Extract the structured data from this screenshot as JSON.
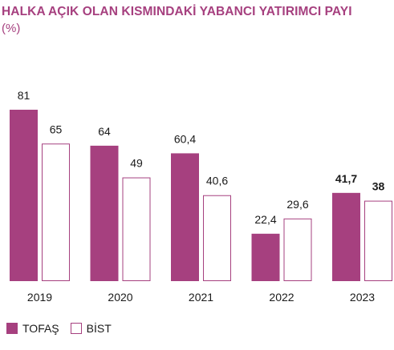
{
  "colors": {
    "tofas": "#a6407f",
    "bist_fill": "#ffffff",
    "bist_stroke": "#a6407f",
    "title": "#a6407f",
    "text": "#1a1a1a"
  },
  "chart_data": {
    "type": "bar",
    "title": "HALKA AÇIK OLAN KISMINDAKİ YABANCI YATIRIMCI PAYI",
    "subtitle": "(%)",
    "categories": [
      "2019",
      "2020",
      "2021",
      "2022",
      "2023"
    ],
    "series": [
      {
        "name": "TOFAŞ",
        "values": [
          81,
          64,
          60.4,
          22.4,
          41.7
        ],
        "labels": [
          "81",
          "64",
          "60,4",
          "22,4",
          "41,7"
        ]
      },
      {
        "name": "BİST",
        "values": [
          65,
          49,
          40.6,
          29.6,
          38
        ],
        "labels": [
          "65",
          "49",
          "40,6",
          "29,6",
          "38"
        ]
      }
    ],
    "ylim": [
      0,
      81
    ],
    "grid": false,
    "legend_position": "bottom-left"
  }
}
